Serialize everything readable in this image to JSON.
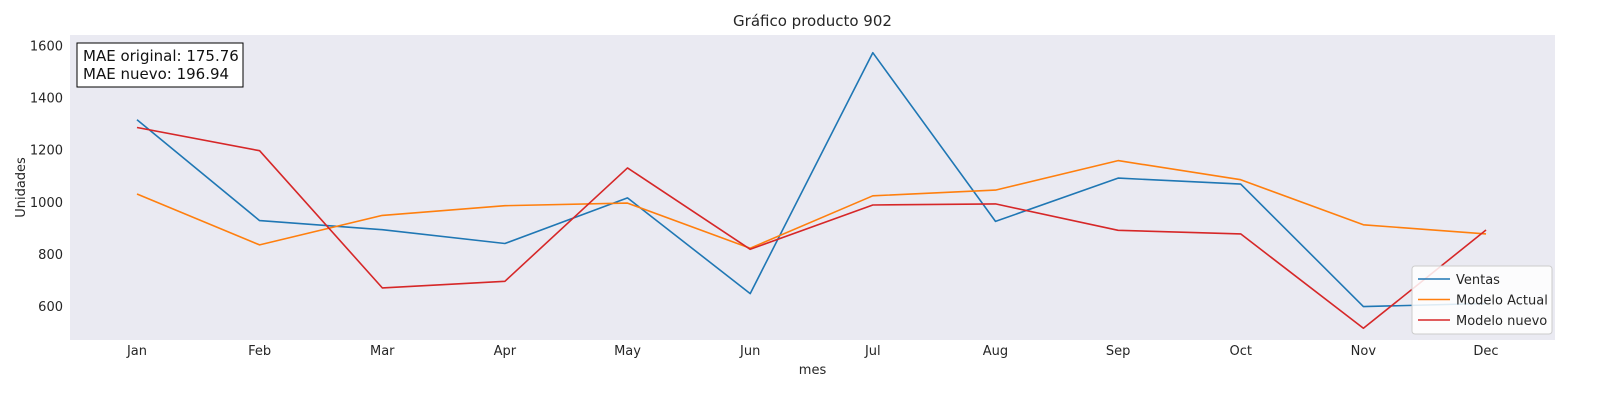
{
  "chart_data": {
    "type": "line",
    "title": "Gráfico producto 902",
    "xlabel": "mes",
    "ylabel": "Unidades",
    "categories": [
      "Jan",
      "Feb",
      "Mar",
      "Apr",
      "May",
      "Jun",
      "Jul",
      "Aug",
      "Sep",
      "Oct",
      "Nov",
      "Dec"
    ],
    "ylim": [
      470,
      1640
    ],
    "yticks": [
      600,
      800,
      1000,
      1200,
      1400,
      1600
    ],
    "grid": false,
    "legend_position": "lower-right",
    "background_color": "#eaeaf2",
    "series": [
      {
        "name": "Ventas",
        "color": "#1f77b4",
        "values": [
          1315,
          928,
          893,
          840,
          1015,
          648,
          1572,
          925,
          1091,
          1068,
          598,
          610
        ]
      },
      {
        "name": "Modelo Actual",
        "color": "#ff7f0e",
        "values": [
          1030,
          835,
          948,
          985,
          995,
          822,
          1023,
          1045,
          1158,
          1085,
          912,
          877
        ]
      },
      {
        "name": "Modelo nuevo",
        "color": "#d62728",
        "values": [
          1285,
          1196,
          670,
          695,
          1130,
          818,
          988,
          992,
          891,
          877,
          515,
          892
        ]
      }
    ],
    "annotation": [
      "MAE original: 175.76",
      "MAE nuevo: 196.94"
    ]
  }
}
